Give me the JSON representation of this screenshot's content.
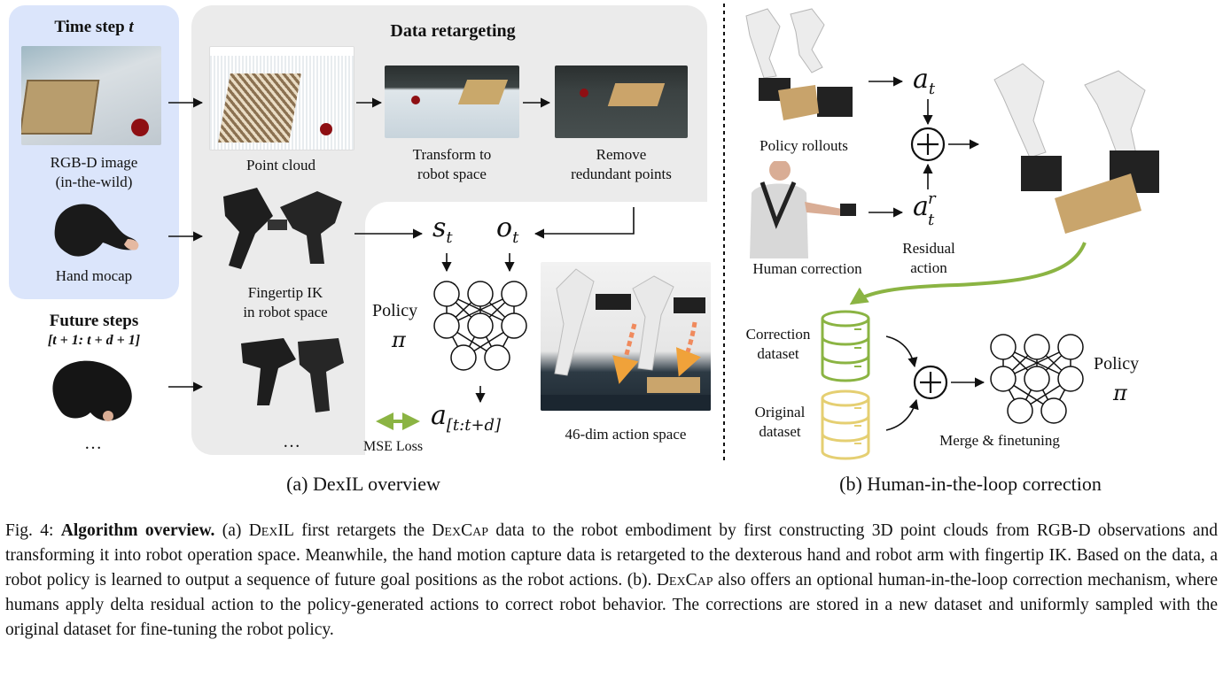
{
  "figure": {
    "left_panel": {
      "time_step_title": "Time step",
      "time_step_var": "t",
      "rgbd_label_line1": "RGB-D image",
      "rgbd_label_line2": "(in-the-wild)",
      "hand_mocap_label": "Hand mocap",
      "future_steps_title": "Future steps",
      "future_steps_range": "[t + 1: t + d + 1]",
      "ellipsis": "…"
    },
    "retargeting": {
      "title": "Data retargeting",
      "point_cloud_label": "Point cloud",
      "transform_label_line1": "Transform to",
      "transform_label_line2": "robot space",
      "remove_label_line1": "Remove",
      "remove_label_line2": "redundant points",
      "fingertip_label_line1": "Fingertip IK",
      "fingertip_label_line2": "in robot space",
      "ellipsis": "…"
    },
    "policy": {
      "state_symbol": "s",
      "state_sub": "t",
      "obs_symbol": "o",
      "obs_sub": "t",
      "policy_label": "Policy",
      "policy_symbol": "π",
      "action_symbol": "a",
      "action_sub": "[t:t+d]",
      "mse_label": "MSE Loss",
      "action_space_label": "46-dim action space"
    },
    "hitl": {
      "policy_rollouts_label": "Policy rollouts",
      "human_correction_label": "Human correction",
      "a_t_symbol": "a",
      "a_t_sub": "t",
      "a_r_symbol": "a",
      "a_r_sup": "r",
      "a_r_sub": "t",
      "residual_line1": "Residual",
      "residual_line2": "action",
      "correction_dataset_line1": "Correction",
      "correction_dataset_line2": "dataset",
      "original_dataset_line1": "Original",
      "original_dataset_line2": "dataset",
      "merge_label": "Merge & finetuning",
      "policy_label": "Policy",
      "policy_symbol": "π"
    },
    "subcaption_a": "(a) DexIL overview",
    "subcaption_b": "(b) Human-in-the-loop correction",
    "colors": {
      "blue_panel": "#dbe5fb",
      "gray_panel": "#ebebeb",
      "green_arrow": "#8bb443",
      "correction_db": "#8bb443",
      "original_db": "#e5cf72",
      "dashed_arrow": "#f08a5d"
    }
  },
  "caption": {
    "fig_label": "Fig. 4:",
    "bold_title": "Algorithm overview.",
    "p1": " (a) ",
    "dexil": "DexIL",
    "p2": " first retargets the ",
    "dexcap1": "DexCap",
    "p3": " data to the robot embodiment by first constructing 3D point clouds from RGB-D observations and transforming it into robot operation space. Meanwhile, the hand motion capture data is retargeted to the dexterous hand and robot arm with fingertip IK. Based on the data, a robot policy is learned to output a sequence of future goal positions as the robot actions. (b). ",
    "dexcap2": "DexCap",
    "p4": " also offers an optional human-in-the-loop correction mechanism, where humans apply delta residual action to the policy-generated actions to correct robot behavior. The corrections are stored in a new dataset and uniformly sampled with the original dataset for fine-tuning the robot policy."
  }
}
